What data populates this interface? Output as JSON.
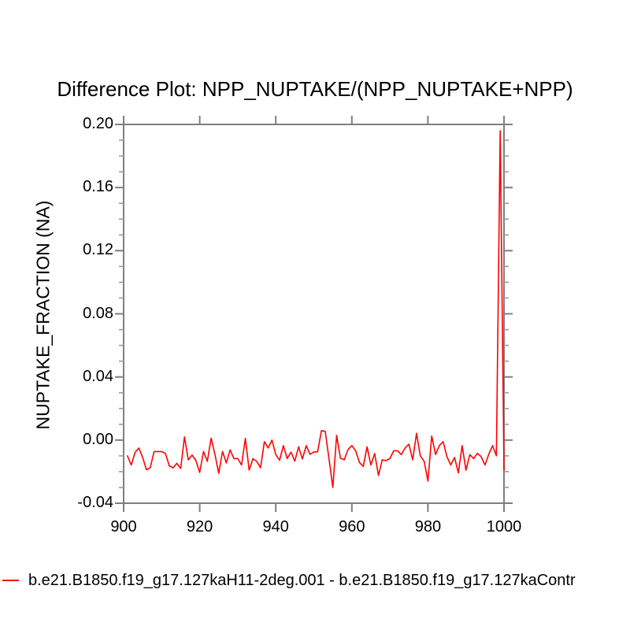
{
  "title": "Difference Plot: NPP_NUPTAKE/(NPP_NUPTAKE+NPP)",
  "colors": {
    "line": "#ff0000",
    "axis": "#7f7f7f",
    "minor_tick": "#9a9a9a",
    "text": "#000000",
    "background": "#ffffff"
  },
  "legend": {
    "marker_color": "#ff0000"
  },
  "chart_data": {
    "type": "line",
    "title": "Difference Plot: NPP_NUPTAKE/(NPP_NUPTAKE+NPP)",
    "xlabel": "",
    "ylabel": "NUPTAKE_FRACTION  (NA)",
    "xlim": [
      900,
      1000
    ],
    "ylim": [
      -0.04,
      0.2
    ],
    "x_ticks": [
      900,
      920,
      940,
      960,
      980,
      1000
    ],
    "y_ticks": [
      -0.04,
      0.0,
      0.04,
      0.08,
      0.12,
      0.16,
      0.2
    ],
    "y_minor_step": 0.01,
    "grid": false,
    "legend_position": "bottom-left",
    "series": [
      {
        "name": "b.e21.B1850.f19_g17.127kaH11-2deg.001 - b.e21.B1850.f19_g17.127kaContr",
        "color": "#ff0000",
        "x": [
          901,
          902,
          903,
          904,
          905,
          906,
          907,
          908,
          909,
          910,
          911,
          912,
          913,
          914,
          915,
          916,
          917,
          918,
          919,
          920,
          921,
          922,
          923,
          924,
          925,
          926,
          927,
          928,
          929,
          930,
          931,
          932,
          933,
          934,
          935,
          936,
          937,
          938,
          939,
          940,
          941,
          942,
          943,
          944,
          945,
          946,
          947,
          948,
          949,
          950,
          951,
          952,
          953,
          954,
          955,
          956,
          957,
          958,
          959,
          960,
          961,
          962,
          963,
          964,
          965,
          966,
          967,
          968,
          969,
          970,
          971,
          972,
          973,
          974,
          975,
          976,
          977,
          978,
          979,
          980,
          981,
          982,
          983,
          984,
          985,
          986,
          987,
          988,
          989,
          990,
          991,
          992,
          993,
          994,
          995,
          996,
          997,
          998,
          999,
          1000
        ],
        "values": [
          -0.01,
          -0.0158,
          -0.0078,
          -0.005,
          -0.011,
          -0.0188,
          -0.0175,
          -0.0073,
          -0.0073,
          -0.0073,
          -0.0085,
          -0.0163,
          -0.0176,
          -0.0147,
          -0.018,
          0.002,
          -0.0125,
          -0.0095,
          -0.013,
          -0.0205,
          -0.0072,
          -0.0135,
          0.0012,
          -0.009,
          -0.021,
          -0.0072,
          -0.0145,
          -0.0062,
          -0.0118,
          -0.0117,
          -0.0158,
          0.001,
          -0.019,
          -0.0118,
          -0.0135,
          -0.0175,
          -0.001,
          -0.005,
          0.0,
          -0.0092,
          -0.0128,
          -0.0035,
          -0.0117,
          -0.0076,
          -0.0134,
          -0.0043,
          -0.012,
          -0.0035,
          -0.009,
          -0.0076,
          -0.0074,
          0.006,
          0.0055,
          -0.012,
          -0.03,
          0.003,
          -0.0115,
          -0.0125,
          -0.006,
          -0.0035,
          -0.0068,
          -0.0142,
          -0.0167,
          -0.0043,
          -0.0158,
          -0.0085,
          -0.0224,
          -0.0125,
          -0.013,
          -0.0117,
          -0.0068,
          -0.0068,
          -0.0092,
          -0.005,
          -0.0026,
          -0.0125,
          0.0043,
          -0.01,
          -0.0134,
          -0.026,
          0.0026,
          -0.0092,
          -0.0035,
          -0.001,
          -0.0105,
          -0.0158,
          -0.011,
          -0.0208,
          -0.0035,
          -0.0191,
          -0.0092,
          -0.0117,
          -0.0084,
          -0.0105,
          -0.0158,
          -0.009,
          -0.0035,
          -0.01,
          0.196,
          -0.019
        ]
      }
    ]
  }
}
